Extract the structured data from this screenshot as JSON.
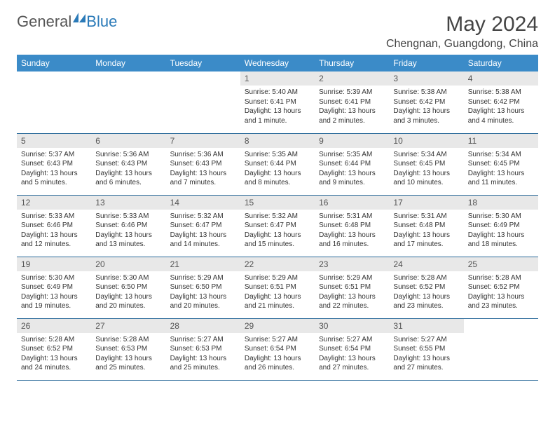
{
  "logo": {
    "part1": "General",
    "part2": "Blue"
  },
  "title": "May 2024",
  "location": "Chengnan, Guangdong, China",
  "colors": {
    "header_bg": "#3b8bc8",
    "header_text": "#ffffff",
    "daynum_bg": "#e8e8e8",
    "border": "#2a6a9a",
    "logo_gray": "#555555",
    "logo_blue": "#2a7ab8"
  },
  "weekdays": [
    "Sunday",
    "Monday",
    "Tuesday",
    "Wednesday",
    "Thursday",
    "Friday",
    "Saturday"
  ],
  "layout": {
    "first_weekday_index": 3,
    "days_in_month": 31
  },
  "days": {
    "1": {
      "sunrise": "5:40 AM",
      "sunset": "6:41 PM",
      "daylight": "13 hours and 1 minute."
    },
    "2": {
      "sunrise": "5:39 AM",
      "sunset": "6:41 PM",
      "daylight": "13 hours and 2 minutes."
    },
    "3": {
      "sunrise": "5:38 AM",
      "sunset": "6:42 PM",
      "daylight": "13 hours and 3 minutes."
    },
    "4": {
      "sunrise": "5:38 AM",
      "sunset": "6:42 PM",
      "daylight": "13 hours and 4 minutes."
    },
    "5": {
      "sunrise": "5:37 AM",
      "sunset": "6:43 PM",
      "daylight": "13 hours and 5 minutes."
    },
    "6": {
      "sunrise": "5:36 AM",
      "sunset": "6:43 PM",
      "daylight": "13 hours and 6 minutes."
    },
    "7": {
      "sunrise": "5:36 AM",
      "sunset": "6:43 PM",
      "daylight": "13 hours and 7 minutes."
    },
    "8": {
      "sunrise": "5:35 AM",
      "sunset": "6:44 PM",
      "daylight": "13 hours and 8 minutes."
    },
    "9": {
      "sunrise": "5:35 AM",
      "sunset": "6:44 PM",
      "daylight": "13 hours and 9 minutes."
    },
    "10": {
      "sunrise": "5:34 AM",
      "sunset": "6:45 PM",
      "daylight": "13 hours and 10 minutes."
    },
    "11": {
      "sunrise": "5:34 AM",
      "sunset": "6:45 PM",
      "daylight": "13 hours and 11 minutes."
    },
    "12": {
      "sunrise": "5:33 AM",
      "sunset": "6:46 PM",
      "daylight": "13 hours and 12 minutes."
    },
    "13": {
      "sunrise": "5:33 AM",
      "sunset": "6:46 PM",
      "daylight": "13 hours and 13 minutes."
    },
    "14": {
      "sunrise": "5:32 AM",
      "sunset": "6:47 PM",
      "daylight": "13 hours and 14 minutes."
    },
    "15": {
      "sunrise": "5:32 AM",
      "sunset": "6:47 PM",
      "daylight": "13 hours and 15 minutes."
    },
    "16": {
      "sunrise": "5:31 AM",
      "sunset": "6:48 PM",
      "daylight": "13 hours and 16 minutes."
    },
    "17": {
      "sunrise": "5:31 AM",
      "sunset": "6:48 PM",
      "daylight": "13 hours and 17 minutes."
    },
    "18": {
      "sunrise": "5:30 AM",
      "sunset": "6:49 PM",
      "daylight": "13 hours and 18 minutes."
    },
    "19": {
      "sunrise": "5:30 AM",
      "sunset": "6:49 PM",
      "daylight": "13 hours and 19 minutes."
    },
    "20": {
      "sunrise": "5:30 AM",
      "sunset": "6:50 PM",
      "daylight": "13 hours and 20 minutes."
    },
    "21": {
      "sunrise": "5:29 AM",
      "sunset": "6:50 PM",
      "daylight": "13 hours and 20 minutes."
    },
    "22": {
      "sunrise": "5:29 AM",
      "sunset": "6:51 PM",
      "daylight": "13 hours and 21 minutes."
    },
    "23": {
      "sunrise": "5:29 AM",
      "sunset": "6:51 PM",
      "daylight": "13 hours and 22 minutes."
    },
    "24": {
      "sunrise": "5:28 AM",
      "sunset": "6:52 PM",
      "daylight": "13 hours and 23 minutes."
    },
    "25": {
      "sunrise": "5:28 AM",
      "sunset": "6:52 PM",
      "daylight": "13 hours and 23 minutes."
    },
    "26": {
      "sunrise": "5:28 AM",
      "sunset": "6:52 PM",
      "daylight": "13 hours and 24 minutes."
    },
    "27": {
      "sunrise": "5:28 AM",
      "sunset": "6:53 PM",
      "daylight": "13 hours and 25 minutes."
    },
    "28": {
      "sunrise": "5:27 AM",
      "sunset": "6:53 PM",
      "daylight": "13 hours and 25 minutes."
    },
    "29": {
      "sunrise": "5:27 AM",
      "sunset": "6:54 PM",
      "daylight": "13 hours and 26 minutes."
    },
    "30": {
      "sunrise": "5:27 AM",
      "sunset": "6:54 PM",
      "daylight": "13 hours and 27 minutes."
    },
    "31": {
      "sunrise": "5:27 AM",
      "sunset": "6:55 PM",
      "daylight": "13 hours and 27 minutes."
    }
  },
  "labels": {
    "sunrise": "Sunrise:",
    "sunset": "Sunset:",
    "daylight": "Daylight:"
  }
}
